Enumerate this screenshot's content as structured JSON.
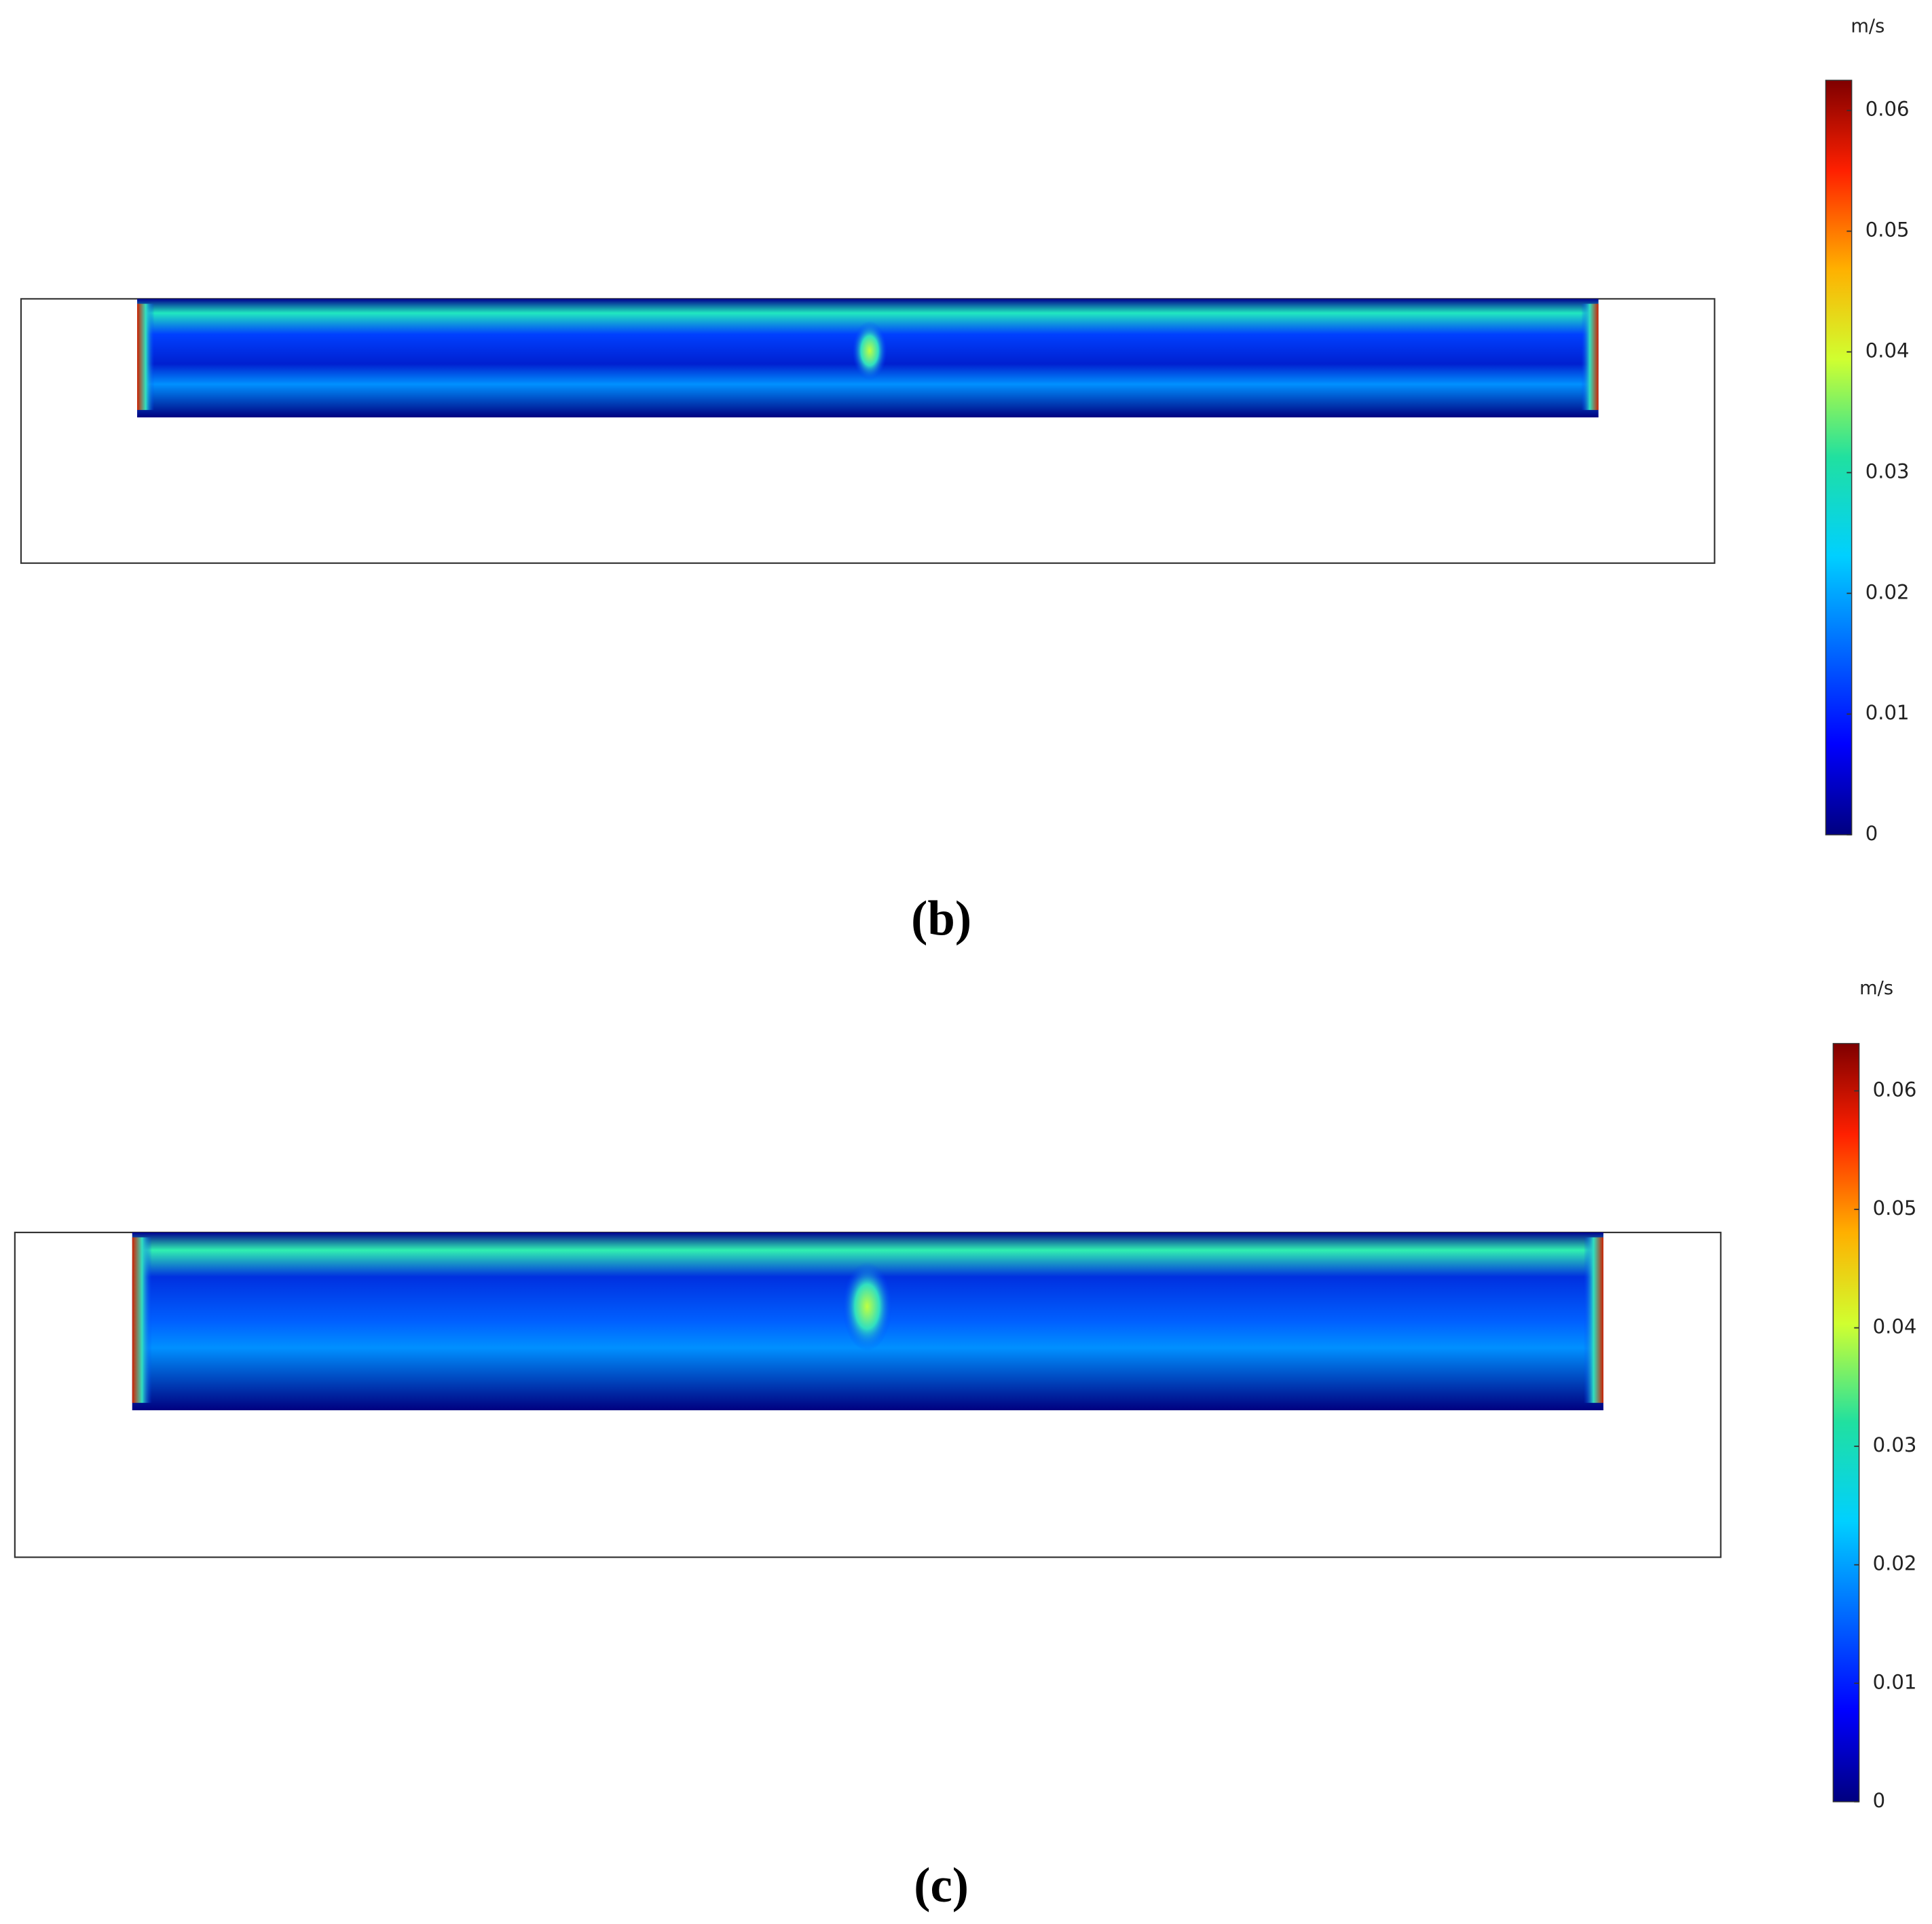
{
  "panels": [
    {
      "label": "(b)",
      "colorbar": {
        "unit": "m/s",
        "lim": [
          0,
          0.0625
        ],
        "ticks": [
          0,
          0.01,
          0.02,
          0.03,
          0.04,
          0.05,
          0.06
        ]
      }
    },
    {
      "label": "(c)",
      "colorbar": {
        "unit": "m/s",
        "lim": [
          0,
          0.064
        ],
        "ticks": [
          0,
          0.01,
          0.02,
          0.03,
          0.04,
          0.05,
          0.06
        ]
      }
    }
  ]
}
